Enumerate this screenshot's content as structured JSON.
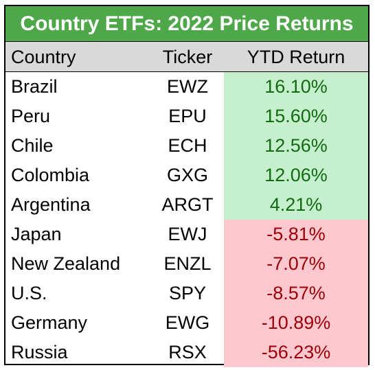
{
  "title": "Country ETFs: 2022 Price Returns",
  "headers": {
    "country": "Country",
    "ticker": "Ticker",
    "ytd": "YTD Return"
  },
  "colors": {
    "title_bg": "#4ea84a",
    "header_bg": "#d9d9d9",
    "positive_bg": "#c6efce",
    "positive_text": "#116b11",
    "negative_bg": "#ffc7ce",
    "negative_text": "#9c0006"
  },
  "rows": [
    {
      "country": "Brazil",
      "ticker": "EWZ",
      "ytd": "16.10%",
      "sign": "pos"
    },
    {
      "country": "Peru",
      "ticker": "EPU",
      "ytd": "15.60%",
      "sign": "pos"
    },
    {
      "country": "Chile",
      "ticker": "ECH",
      "ytd": "12.56%",
      "sign": "pos"
    },
    {
      "country": "Colombia",
      "ticker": "GXG",
      "ytd": "12.06%",
      "sign": "pos"
    },
    {
      "country": "Argentina",
      "ticker": "ARGT",
      "ytd": "4.21%",
      "sign": "pos"
    },
    {
      "country": "Japan",
      "ticker": "EWJ",
      "ytd": "-5.81%",
      "sign": "neg"
    },
    {
      "country": "New Zealand",
      "ticker": "ENZL",
      "ytd": "-7.07%",
      "sign": "neg"
    },
    {
      "country": "U.S.",
      "ticker": "SPY",
      "ytd": "-8.57%",
      "sign": "neg"
    },
    {
      "country": "Germany",
      "ticker": "EWG",
      "ytd": "-10.89%",
      "sign": "neg"
    },
    {
      "country": "Russia",
      "ticker": "RSX",
      "ytd": "-56.23%",
      "sign": "neg"
    }
  ]
}
